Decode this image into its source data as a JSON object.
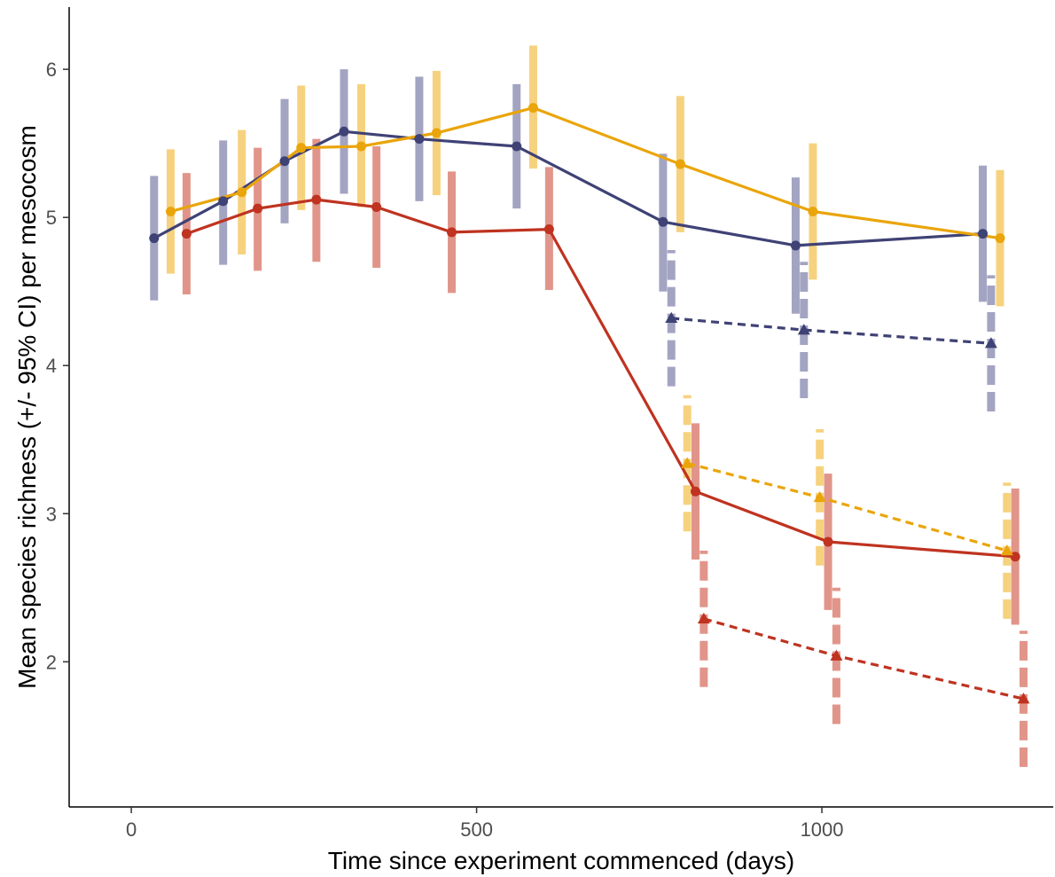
{
  "chart_data": {
    "type": "line",
    "xlabel": "Time since experiment commenced (days)",
    "ylabel": "Mean species richness (+/- 95% CI) per mesocosm",
    "xlim": [
      -90,
      1335
    ],
    "ylim": [
      1.02,
      6.42
    ],
    "x_ticks": [
      0,
      500,
      1000
    ],
    "y_ticks": [
      2,
      3,
      4,
      5,
      6
    ],
    "x_tick_labels": [
      "0",
      "500",
      "1000"
    ],
    "y_tick_labels": [
      "2",
      "3",
      "4",
      "5",
      "6"
    ],
    "grid": false,
    "legend": "none",
    "series": [
      {
        "color": "#3f4275",
        "ci_color": "#a3a4c2",
        "line_style": "solid",
        "marker": "circle",
        "points": [
          {
            "x": 33,
            "y": 4.86,
            "lo": 4.44,
            "hi": 5.28
          },
          {
            "x": 133,
            "y": 5.11,
            "lo": 4.68,
            "hi": 5.52
          },
          {
            "x": 222,
            "y": 5.38,
            "lo": 4.96,
            "hi": 5.8
          },
          {
            "x": 308,
            "y": 5.58,
            "lo": 5.16,
            "hi": 6.0
          },
          {
            "x": 417,
            "y": 5.53,
            "lo": 5.11,
            "hi": 5.95
          },
          {
            "x": 558,
            "y": 5.48,
            "lo": 5.06,
            "hi": 5.9
          },
          {
            "x": 770,
            "y": 4.97,
            "lo": 4.5,
            "hi": 5.43
          },
          {
            "x": 962,
            "y": 4.81,
            "lo": 4.35,
            "hi": 5.27
          },
          {
            "x": 1233,
            "y": 4.89,
            "lo": 4.43,
            "hi": 5.35
          }
        ]
      },
      {
        "color": "#eaa50b",
        "ci_color": "#f6d27f",
        "line_style": "solid",
        "marker": "circle",
        "points": [
          {
            "x": 57,
            "y": 5.04,
            "lo": 4.62,
            "hi": 5.46
          },
          {
            "x": 160,
            "y": 5.17,
            "lo": 4.75,
            "hi": 5.59
          },
          {
            "x": 246,
            "y": 5.47,
            "lo": 5.05,
            "hi": 5.89
          },
          {
            "x": 333,
            "y": 5.48,
            "lo": 5.07,
            "hi": 5.9
          },
          {
            "x": 442,
            "y": 5.57,
            "lo": 5.15,
            "hi": 5.99
          },
          {
            "x": 582,
            "y": 5.74,
            "lo": 5.33,
            "hi": 6.16
          },
          {
            "x": 795,
            "y": 5.36,
            "lo": 4.9,
            "hi": 5.82
          },
          {
            "x": 987,
            "y": 5.04,
            "lo": 4.58,
            "hi": 5.5
          },
          {
            "x": 1258,
            "y": 4.86,
            "lo": 4.4,
            "hi": 5.32
          }
        ]
      },
      {
        "color": "#bf3320",
        "ci_color": "#e1958a",
        "line_style": "solid",
        "marker": "circle",
        "points": [
          {
            "x": 80,
            "y": 4.89,
            "lo": 4.48,
            "hi": 5.3
          },
          {
            "x": 183,
            "y": 5.06,
            "lo": 4.64,
            "hi": 5.47
          },
          {
            "x": 268,
            "y": 5.12,
            "lo": 4.7,
            "hi": 5.53
          },
          {
            "x": 355,
            "y": 5.07,
            "lo": 4.66,
            "hi": 5.48
          },
          {
            "x": 464,
            "y": 4.9,
            "lo": 4.49,
            "hi": 5.31
          },
          {
            "x": 605,
            "y": 4.92,
            "lo": 4.51,
            "hi": 5.34
          },
          {
            "x": 817,
            "y": 3.15,
            "lo": 2.69,
            "hi": 3.61
          },
          {
            "x": 1009,
            "y": 2.81,
            "lo": 2.35,
            "hi": 3.27
          },
          {
            "x": 1280,
            "y": 2.71,
            "lo": 2.25,
            "hi": 3.17
          }
        ]
      },
      {
        "color": "#3f4275",
        "ci_color": "#a3a4c2",
        "line_style": "dashed",
        "marker": "triangle",
        "points": [
          {
            "x": 782,
            "y": 4.32,
            "lo": 3.86,
            "hi": 4.78
          },
          {
            "x": 974,
            "y": 4.24,
            "lo": 3.78,
            "hi": 4.7
          },
          {
            "x": 1245,
            "y": 4.15,
            "lo": 3.69,
            "hi": 4.61
          }
        ]
      },
      {
        "color": "#eaa50b",
        "ci_color": "#f6d27f",
        "line_style": "dashed",
        "marker": "triangle",
        "points": [
          {
            "x": 805,
            "y": 3.34,
            "lo": 2.88,
            "hi": 3.8
          },
          {
            "x": 997,
            "y": 3.11,
            "lo": 2.65,
            "hi": 3.57
          },
          {
            "x": 1268,
            "y": 2.75,
            "lo": 2.29,
            "hi": 3.21
          }
        ]
      },
      {
        "color": "#bf3320",
        "ci_color": "#e1958a",
        "line_style": "dashed",
        "marker": "triangle",
        "points": [
          {
            "x": 829,
            "y": 2.29,
            "lo": 1.83,
            "hi": 2.75
          },
          {
            "x": 1021,
            "y": 2.04,
            "lo": 1.58,
            "hi": 2.5
          },
          {
            "x": 1292,
            "y": 1.75,
            "lo": 1.29,
            "hi": 2.21
          }
        ]
      }
    ]
  }
}
